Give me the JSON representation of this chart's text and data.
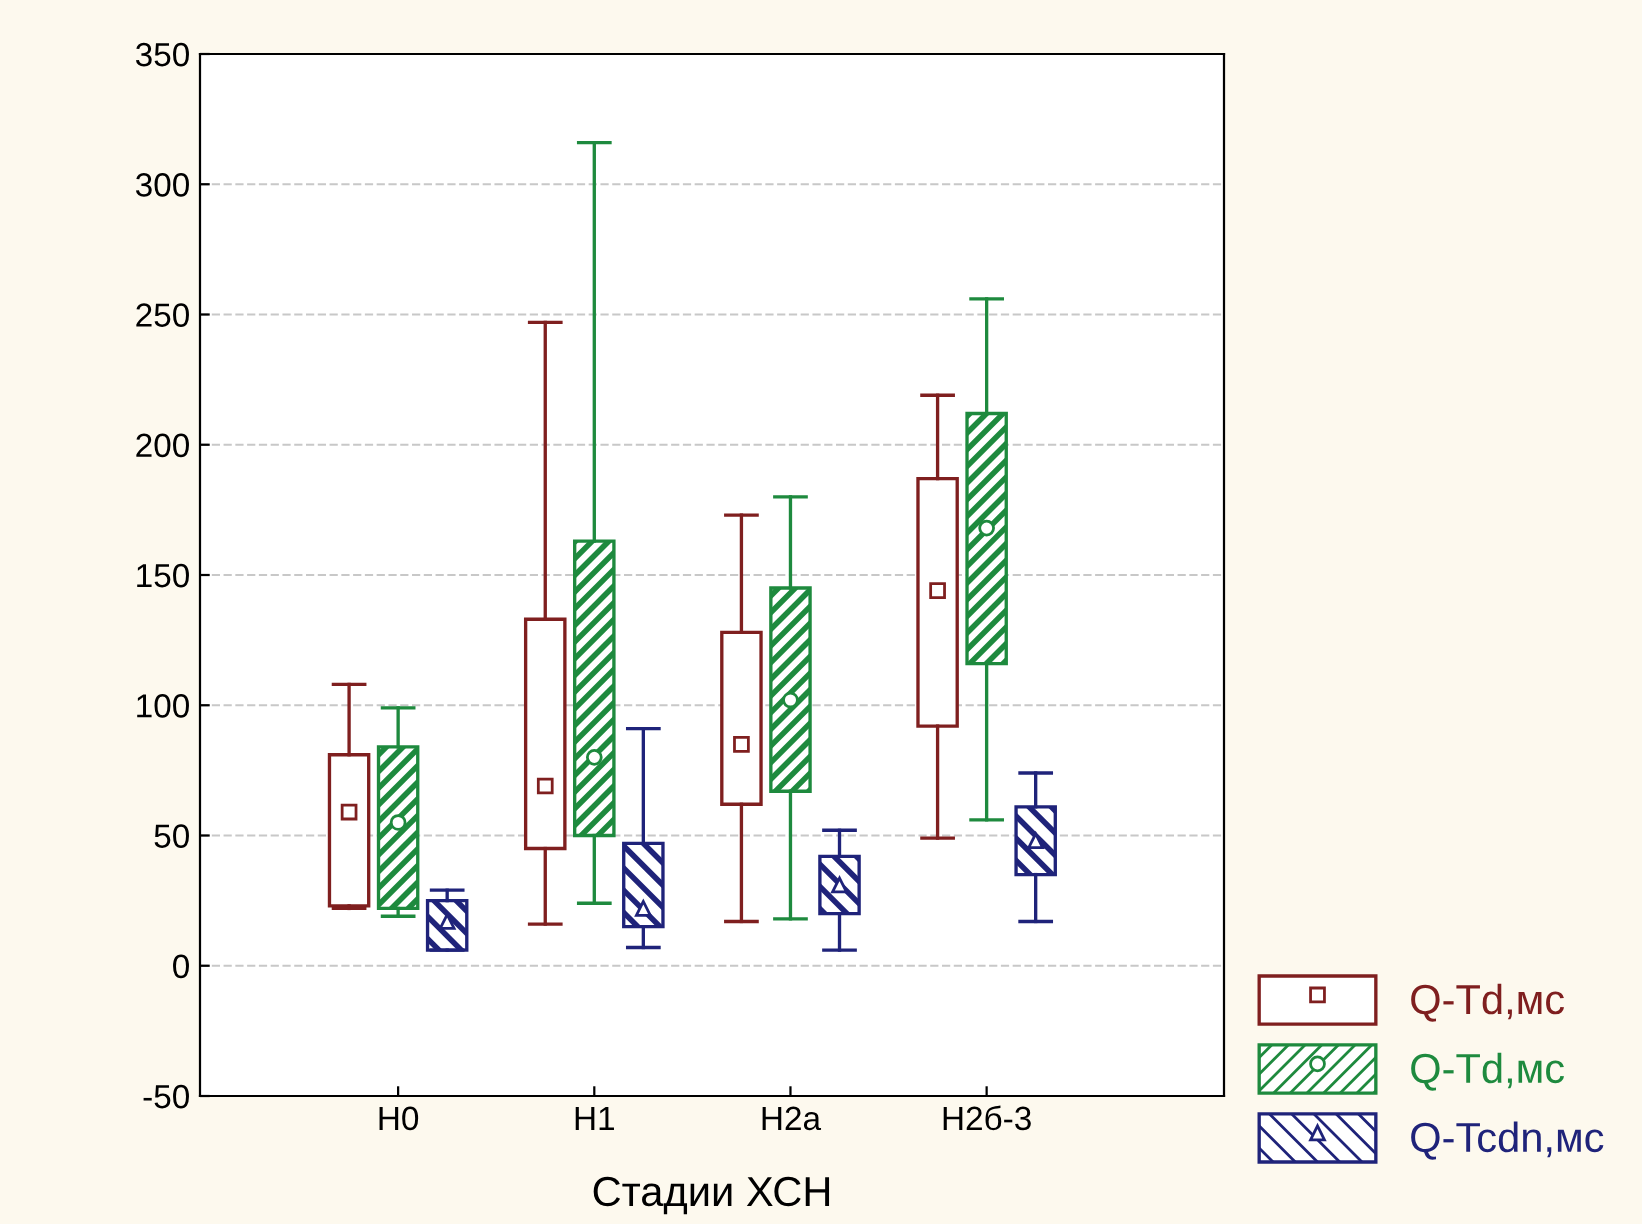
{
  "chart_data": {
    "type": "box",
    "xlabel": "Стадии ХСН",
    "categories": [
      "H0",
      "H1",
      "H2a",
      "H2б-3"
    ],
    "series": [
      {
        "name": "Q-Td,мс",
        "color": "#7f1f1f",
        "marker": "square",
        "boxes": [
          {
            "low": 22,
            "q1": 23,
            "median": 59,
            "q3": 81,
            "high": 108
          },
          {
            "low": 16,
            "q1": 45,
            "median": 69,
            "q3": 133,
            "high": 247
          },
          {
            "low": 17,
            "q1": 62,
            "median": 85,
            "q3": 128,
            "high": 173
          },
          {
            "low": 49,
            "q1": 92,
            "median": 144,
            "q3": 187,
            "high": 219
          }
        ]
      },
      {
        "name": "Q-Td,мс",
        "color": "#1e8a3e",
        "marker": "circle",
        "boxes": [
          {
            "low": 19,
            "q1": 22,
            "median": 55,
            "q3": 84,
            "high": 99
          },
          {
            "low": 24,
            "q1": 50,
            "median": 80,
            "q3": 163,
            "high": 316
          },
          {
            "low": 18,
            "q1": 67,
            "median": 102,
            "q3": 145,
            "high": 180
          },
          {
            "low": 56,
            "q1": 116,
            "median": 168,
            "q3": 212,
            "high": 256
          }
        ]
      },
      {
        "name": "Q-Tcdn,мс",
        "color": "#1f237a",
        "marker": "triangle",
        "boxes": [
          {
            "low": 6,
            "q1": 6,
            "median": 17,
            "q3": 25,
            "high": 29
          },
          {
            "low": 7,
            "q1": 15,
            "median": 22,
            "q3": 47,
            "high": 91
          },
          {
            "low": 6,
            "q1": 20,
            "median": 31,
            "q3": 42,
            "high": 52
          },
          {
            "low": 17,
            "q1": 35,
            "median": 48,
            "q3": 61,
            "high": 74
          }
        ]
      }
    ],
    "ylim": [
      -50,
      350
    ],
    "yticks": [
      -50,
      0,
      50,
      100,
      150,
      200,
      250,
      300,
      350
    ],
    "grid": "y",
    "legend": "bottom right"
  }
}
